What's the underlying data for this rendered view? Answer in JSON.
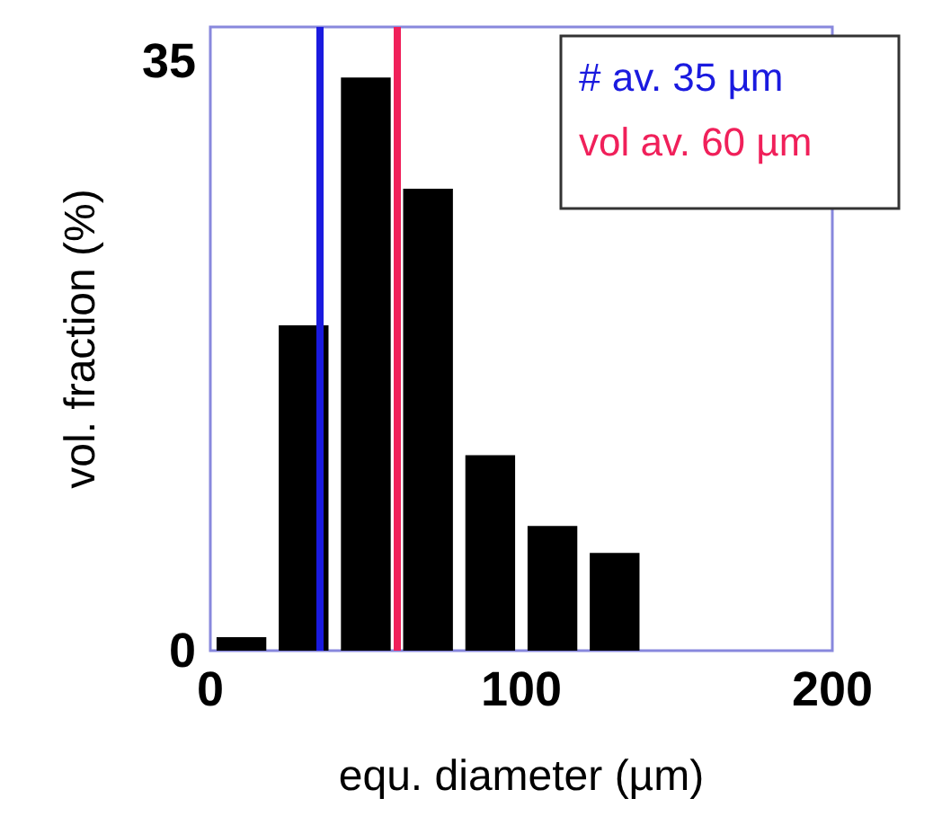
{
  "chart_data": {
    "type": "histogram",
    "xlabel": "equ. diameter (µm)",
    "ylabel": "vol. fraction (%)",
    "bins": [
      0,
      20,
      40,
      60,
      80,
      100,
      120,
      140
    ],
    "values": [
      0.8,
      19.3,
      34.0,
      27.4,
      11.6,
      7.4,
      5.8
    ],
    "color": "#000000",
    "xlim": [
      0,
      200
    ],
    "xticks": [
      0,
      100,
      200
    ],
    "ylim": [
      0,
      37
    ],
    "yticks": [
      0,
      35
    ],
    "grid": false,
    "ref_lines": [
      {
        "axis": "x",
        "value": 35,
        "label": "# av. 35 µm",
        "color": "#1a1adf"
      },
      {
        "axis": "x",
        "value": 60,
        "label": "vol av. 60 µm",
        "color": "#f0205a"
      }
    ]
  }
}
